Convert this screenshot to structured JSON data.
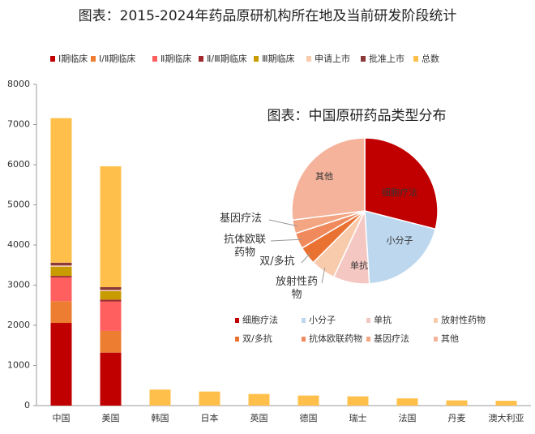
{
  "chart_data": [
    {
      "type": "bar",
      "stacked": true,
      "title": "图表：2015-2024年药品原研机构所在地及当前研发阶段统计",
      "categories": [
        "中国",
        "美国",
        "韩国",
        "日本",
        "英国",
        "德国",
        "瑞士",
        "法国",
        "丹麦",
        "澳大利亚"
      ],
      "series": [
        {
          "name": "Ⅰ期临床",
          "color": "#c00000",
          "values": [
            2060,
            1320,
            null,
            null,
            null,
            null,
            null,
            null,
            null,
            null
          ]
        },
        {
          "name": "Ⅰ/Ⅱ期临床",
          "color": "#ed7d31",
          "values": [
            540,
            540,
            null,
            null,
            null,
            null,
            null,
            null,
            null,
            null
          ]
        },
        {
          "name": "Ⅱ期临床",
          "color": "#ff5f5f",
          "values": [
            590,
            730,
            null,
            null,
            null,
            null,
            null,
            null,
            null,
            null
          ]
        },
        {
          "name": "Ⅱ/Ⅲ期临床",
          "color": "#a0282d",
          "values": [
            40,
            50,
            null,
            null,
            null,
            null,
            null,
            null,
            null,
            null
          ]
        },
        {
          "name": "Ⅲ期临床",
          "color": "#c89b00",
          "values": [
            230,
            210,
            null,
            null,
            null,
            null,
            null,
            null,
            null,
            null
          ]
        },
        {
          "name": "申请上市",
          "color": "#f8cbad",
          "values": [
            30,
            30,
            null,
            null,
            null,
            null,
            null,
            null,
            null,
            null
          ]
        },
        {
          "name": "批准上市",
          "color": "#8b3a3a",
          "values": [
            70,
            70,
            null,
            null,
            null,
            null,
            null,
            null,
            null,
            null
          ]
        },
        {
          "name": "总数",
          "color": "#ffc04b",
          "values": [
            3600,
            3010,
            400,
            350,
            290,
            250,
            230,
            180,
            130,
            120
          ]
        }
      ],
      "ylim": [
        0,
        8000
      ],
      "yticks": [
        0,
        1000,
        2000,
        3000,
        4000,
        5000,
        6000,
        7000,
        8000
      ],
      "grid": false,
      "legend": "top"
    },
    {
      "type": "pie",
      "title": "图表：中国原研药品类型分布",
      "categories": [
        "细胞疗法",
        "小分子",
        "单抗",
        "放射性药物",
        "双/多抗",
        "抗体欧联药物",
        "基因疗法",
        "其他"
      ],
      "values": [
        29,
        20,
        8,
        5.5,
        4,
        3.5,
        3,
        27
      ],
      "colors": [
        "#c00000",
        "#bdd7ee",
        "#f4c7c3",
        "#f8cbad",
        "#e97132",
        "#f08a5d",
        "#f4a582",
        "#f4b39a"
      ],
      "legend": "bottom"
    }
  ]
}
